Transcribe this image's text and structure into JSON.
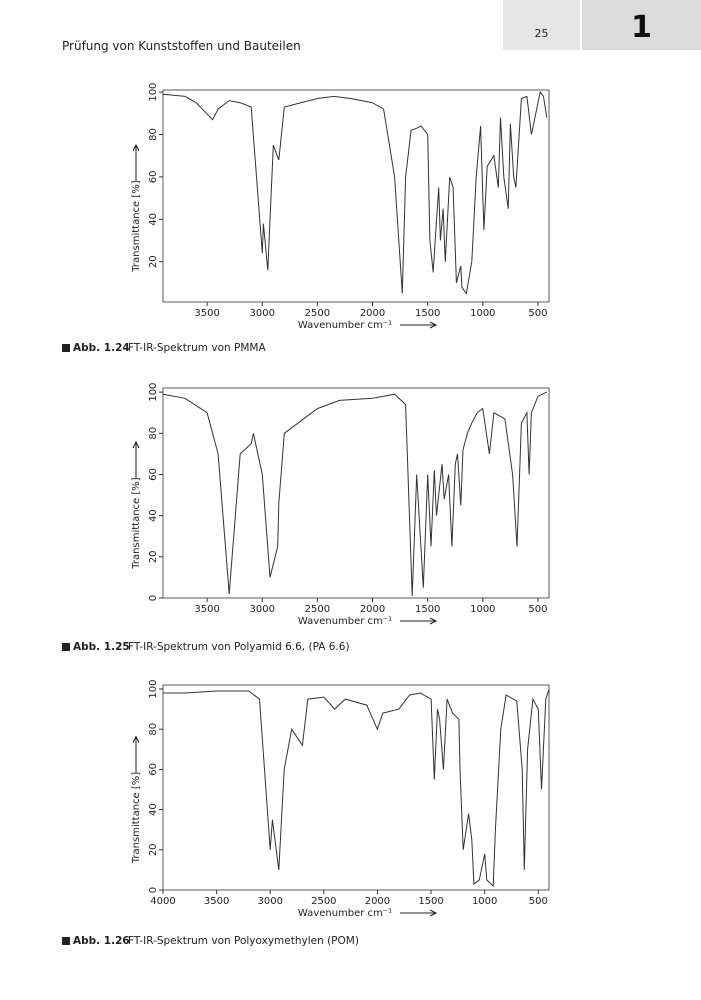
{
  "header": {
    "title": "Prüfung von Kunststoffen und Bauteilen",
    "page": "25",
    "chapter": "1"
  },
  "chart_data": [
    {
      "type": "line",
      "caption_label": "Abb. 1.24",
      "caption": "FT-IR-Spektrum von PMMA",
      "x_label": "Wavenumber cm⁻¹",
      "y_label": "Transmittance [%]",
      "x": [
        3900,
        3700,
        3600,
        3450,
        3400,
        3300,
        3200,
        3100,
        3000,
        2990,
        2950,
        2900,
        2850,
        2800,
        2500,
        2350,
        2200,
        2000,
        1900,
        1800,
        1730,
        1700,
        1650,
        1600,
        1560,
        1500,
        1480,
        1450,
        1435,
        1400,
        1385,
        1360,
        1340,
        1300,
        1270,
        1240,
        1200,
        1190,
        1150,
        1100,
        1060,
        1020,
        990,
        960,
        900,
        860,
        840,
        810,
        770,
        750,
        720,
        700,
        650,
        600,
        560,
        520,
        480,
        450,
        420
      ],
      "series": [
        {
          "color": "#333333",
          "values": [
            99,
            98,
            95,
            87,
            92,
            96,
            95,
            93,
            24,
            38,
            16,
            75,
            68,
            93,
            97,
            98,
            97,
            95,
            92,
            60,
            5,
            60,
            82,
            83,
            84,
            80,
            30,
            15,
            28,
            55,
            30,
            45,
            20,
            60,
            55,
            10,
            18,
            8,
            5,
            20,
            60,
            84,
            35,
            65,
            70,
            55,
            88,
            60,
            45,
            85,
            60,
            55,
            97,
            98,
            80,
            90,
            100,
            98,
            88
          ]
        }
      ],
      "xlim": [
        3900,
        400
      ],
      "ylim": [
        1,
        101
      ],
      "xticks": [
        3500,
        3000,
        2500,
        2000,
        1500,
        1000,
        500
      ],
      "yticks": [
        20,
        40,
        60,
        80,
        100
      ]
    },
    {
      "type": "line",
      "caption_label": "Abb. 1.25",
      "caption": "FT-IR-Spektrum von Polyamid 6.6, (PA 6.6)",
      "x_label": "Wavenumber cm⁻¹",
      "y_label": "Transmittance [%]",
      "x": [
        3900,
        3700,
        3500,
        3400,
        3300,
        3200,
        3100,
        3080,
        3000,
        2930,
        2860,
        2850,
        2800,
        2500,
        2300,
        2000,
        1800,
        1700,
        1640,
        1600,
        1540,
        1500,
        1470,
        1440,
        1420,
        1370,
        1350,
        1310,
        1280,
        1250,
        1230,
        1200,
        1180,
        1140,
        1100,
        1050,
        1000,
        940,
        900,
        800,
        730,
        690,
        650,
        600,
        580,
        560,
        500,
        420
      ],
      "series": [
        {
          "color": "#333333",
          "values": [
            99,
            97,
            90,
            70,
            2,
            70,
            75,
            80,
            60,
            10,
            25,
            46,
            80,
            92,
            96,
            97,
            99,
            94,
            1,
            60,
            5,
            60,
            25,
            62,
            40,
            65,
            48,
            60,
            25,
            65,
            70,
            45,
            72,
            80,
            85,
            90,
            92,
            70,
            90,
            87,
            60,
            25,
            85,
            90,
            60,
            90,
            98,
            100
          ]
        }
      ],
      "xlim": [
        3900,
        400
      ],
      "ylim": [
        0,
        102
      ],
      "xticks": [
        3500,
        3000,
        2500,
        2000,
        1500,
        1000,
        500
      ],
      "yticks": [
        0,
        20,
        40,
        60,
        80,
        100
      ]
    },
    {
      "type": "line",
      "caption_label": "Abb. 1.26",
      "caption": "FT-IR-Spektrum von Polyoxymethylen (POM)",
      "x_label": "Wavenumber cm⁻¹",
      "y_label": "Transmittance [%]",
      "x": [
        4000,
        3800,
        3500,
        3200,
        3100,
        3000,
        2980,
        2920,
        2870,
        2800,
        2700,
        2650,
        2500,
        2400,
        2300,
        2100,
        2000,
        1950,
        1800,
        1700,
        1600,
        1500,
        1470,
        1440,
        1420,
        1385,
        1350,
        1300,
        1240,
        1230,
        1200,
        1150,
        1120,
        1100,
        1050,
        1000,
        980,
        920,
        900,
        850,
        800,
        700,
        650,
        630,
        600,
        550,
        500,
        470,
        430,
        400
      ],
      "series": [
        {
          "color": "#333333",
          "values": [
            98,
            98,
            99,
            99,
            95,
            20,
            35,
            10,
            60,
            80,
            72,
            95,
            96,
            90,
            95,
            92,
            80,
            88,
            90,
            97,
            98,
            95,
            55,
            90,
            85,
            60,
            95,
            88,
            85,
            60,
            20,
            38,
            25,
            3,
            5,
            18,
            5,
            2,
            30,
            80,
            97,
            94,
            60,
            10,
            70,
            95,
            90,
            50,
            95,
            100
          ]
        }
      ],
      "xlim": [
        4000,
        400
      ],
      "ylim": [
        0,
        102
      ],
      "xticks": [
        4000,
        3500,
        3000,
        2500,
        2000,
        1500,
        1000,
        500
      ],
      "yticks": [
        0,
        20,
        40,
        60,
        80,
        100
      ]
    }
  ]
}
